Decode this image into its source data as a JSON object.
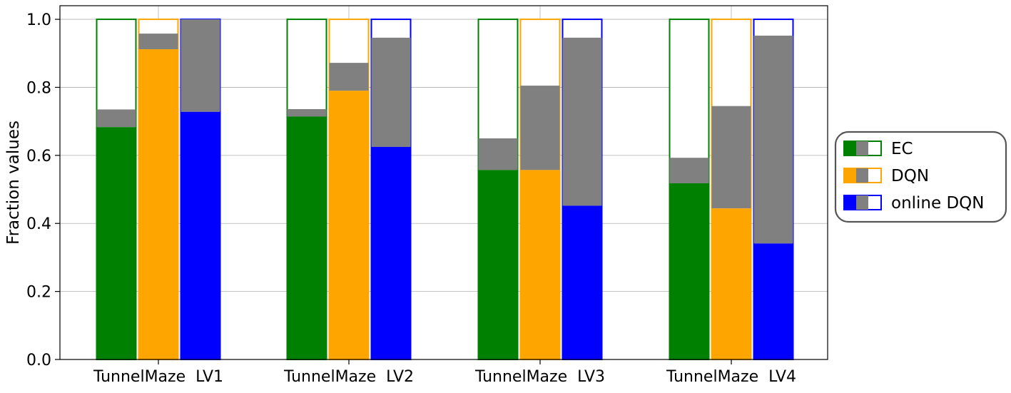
{
  "chart_data": {
    "type": "bar",
    "title": "",
    "xlabel": "",
    "ylabel": "Fraction values",
    "ylim": [
      0,
      1.04
    ],
    "yticks": [
      "0.0",
      "0.2",
      "0.4",
      "0.6",
      "0.8",
      "1.0"
    ],
    "ytick_values": [
      0.0,
      0.2,
      0.4,
      0.6,
      0.8,
      1.0
    ],
    "grid": true,
    "categories": [
      "TunnelMaze  LV1",
      "TunnelMaze  LV2",
      "TunnelMaze  LV3",
      "TunnelMaze  LV4"
    ],
    "stack_note": "Each bar: solid colored segment (bottom), gray segment, white remainder up to 1.0 with colored outline",
    "series": [
      {
        "name": "EC",
        "color": "#008000",
        "solid": [
          0.683,
          0.714,
          0.557,
          0.518
        ],
        "gray_top": [
          0.735,
          0.736,
          0.65,
          0.593
        ],
        "total": [
          1.0,
          1.0,
          1.0,
          1.0
        ]
      },
      {
        "name": "DQN",
        "color": "#FFA500",
        "solid": [
          0.912,
          0.79,
          0.557,
          0.444
        ],
        "gray_top": [
          0.958,
          0.872,
          0.805,
          0.745
        ],
        "total": [
          1.0,
          1.0,
          1.0,
          1.0
        ]
      },
      {
        "name": "online DQN",
        "color": "#0000FF",
        "solid": [
          0.728,
          0.625,
          0.452,
          0.341
        ],
        "gray_top": [
          1.0,
          0.946,
          0.946,
          0.952
        ],
        "total": [
          1.0,
          1.0,
          1.0,
          1.0
        ]
      }
    ],
    "gray_color": "#808080",
    "legend": {
      "placement": "right",
      "entries": [
        "EC",
        "DQN",
        "online DQN"
      ]
    }
  }
}
